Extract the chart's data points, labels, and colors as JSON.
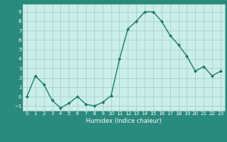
{
  "x": [
    0,
    1,
    2,
    3,
    4,
    5,
    6,
    7,
    8,
    9,
    10,
    11,
    12,
    13,
    14,
    15,
    16,
    17,
    18,
    19,
    20,
    21,
    22,
    23
  ],
  "y": [
    0,
    2.2,
    1.3,
    -0.4,
    -1.2,
    -0.7,
    0.0,
    -0.8,
    -1.0,
    -0.6,
    0.1,
    4.0,
    7.2,
    8.0,
    9.0,
    9.0,
    8.0,
    6.5,
    5.5,
    4.3,
    2.7,
    3.2,
    2.2,
    2.7
  ],
  "xlabel": "Humidex (Indice chaleur)",
  "ylim": [
    -1.5,
    9.8
  ],
  "xlim": [
    -0.5,
    23.5
  ],
  "yticks": [
    -1,
    0,
    1,
    2,
    3,
    4,
    5,
    6,
    7,
    8,
    9
  ],
  "xticks": [
    0,
    1,
    2,
    3,
    4,
    5,
    6,
    7,
    8,
    9,
    10,
    11,
    12,
    13,
    14,
    15,
    16,
    17,
    18,
    19,
    20,
    21,
    22,
    23
  ],
  "line_color": "#1a7a6e",
  "marker_color": "#1a7a6e",
  "bg_color": "#cceee8",
  "grid_color": "#99ccc6",
  "tick_label_color": "white",
  "axis_label_color": "white",
  "fig_bg": "#2a8a7e",
  "xlabel_fontsize": 6.0,
  "tick_fontsize": 5.2
}
